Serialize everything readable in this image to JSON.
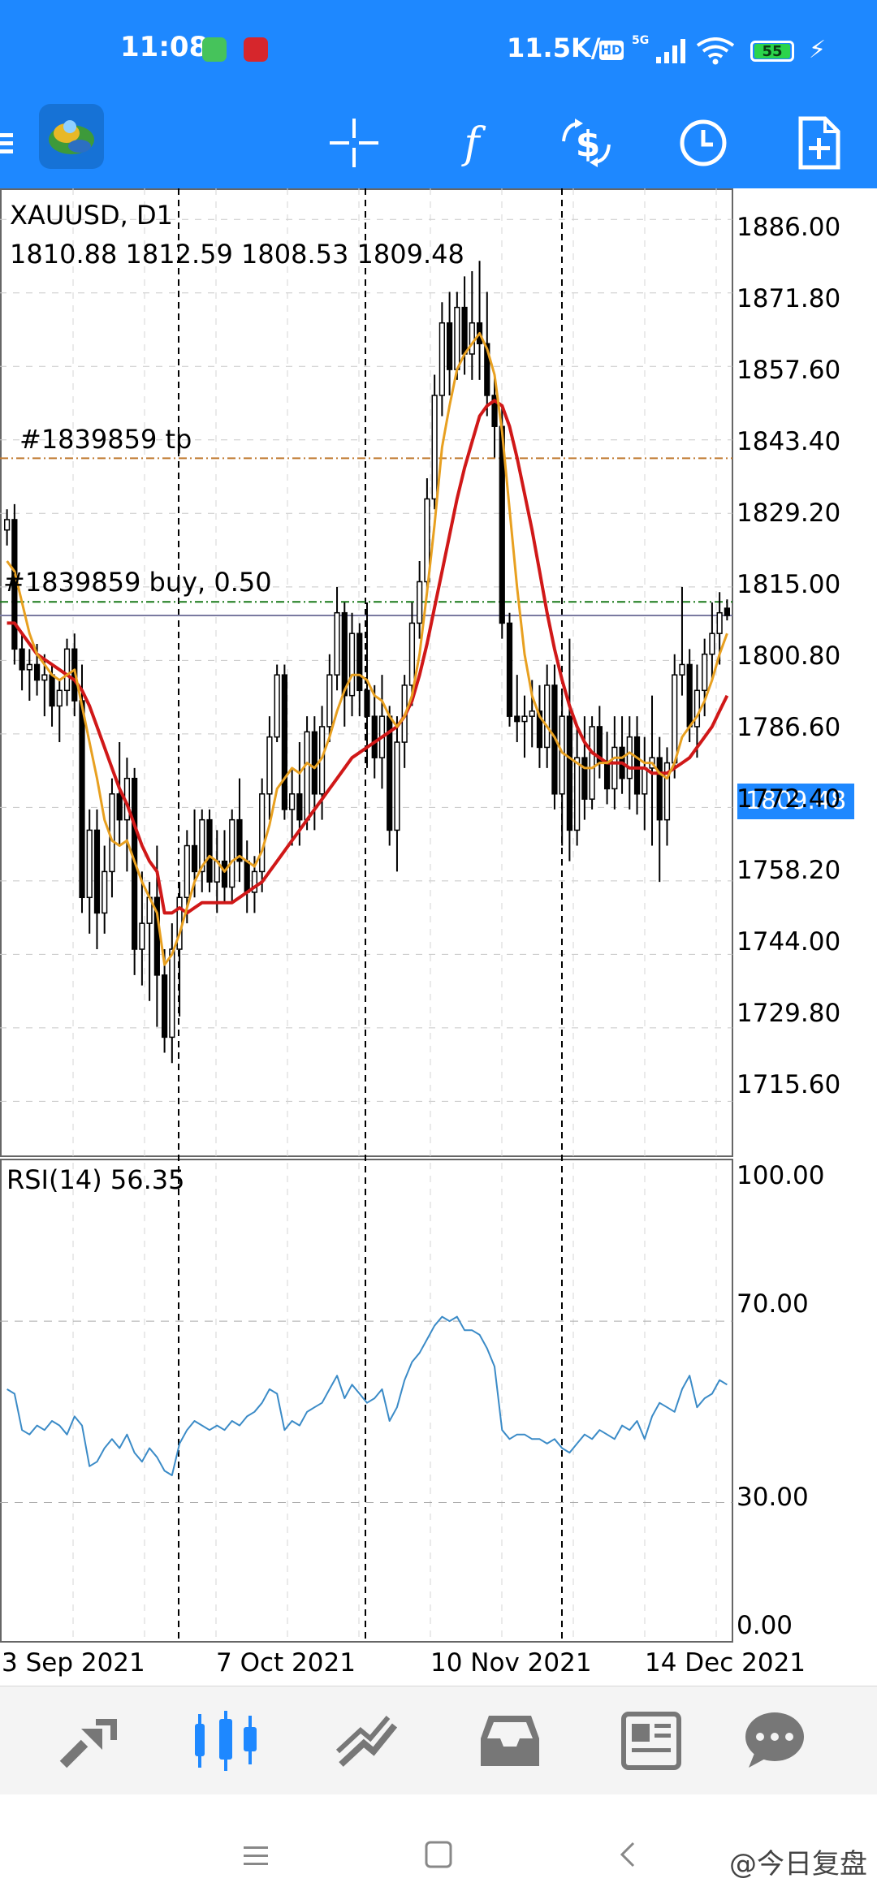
{
  "status_bar": {
    "time": "11:08",
    "network_speed": "11.5K/s",
    "hd_label": "HD",
    "net_label": "5G",
    "battery": "55"
  },
  "toolbar": {
    "icons": [
      "menu-icon",
      "metatrader-logo",
      "crosshair-icon",
      "indicators-icon",
      "trade-icon",
      "period-icon",
      "new-order-icon"
    ]
  },
  "chart": {
    "symbol_label": "XAUUSD, D1",
    "ohlc_label": "1810.88 1812.59 1808.53 1809.48",
    "tp_label": "#1839859 tp",
    "order_label": "#1839859 buy, 0.50",
    "current_price_label": "1809.48",
    "price_axis": [
      "1886.00",
      "1871.80",
      "1857.60",
      "1843.40",
      "1829.20",
      "1815.00",
      "1800.80",
      "1786.60",
      "1772.40",
      "1758.20",
      "1744.00",
      "1729.80",
      "1715.60"
    ],
    "rsi_label": "RSI(14) 56.35",
    "rsi_axis": [
      "100.00",
      "70.00",
      "30.00",
      "0.00"
    ],
    "date_axis": [
      "3 Sep 2021",
      "7 Oct 2021",
      "10 Nov 2021",
      "14 Dec 2021"
    ],
    "colors": {
      "bull": "#ffffff",
      "bear": "#000000",
      "fast_ma": "#e8a020",
      "slow_ma": "#d01818",
      "rsi_line": "#3b8bc7",
      "tp_line": "#c07a30",
      "order_line": "#1a7a1a",
      "bid_line": "#7a7aa0",
      "accent": "#1e88ff"
    }
  },
  "chart_data": {
    "type": "candlestick",
    "symbol": "XAUUSD",
    "timeframe": "D1",
    "ylim": [
      1705,
      1892
    ],
    "candles": [
      [
        1826,
        1830,
        1823,
        1828
      ],
      [
        1828,
        1831,
        1800,
        1803
      ],
      [
        1803,
        1806,
        1795,
        1799
      ],
      [
        1799,
        1803,
        1793,
        1800
      ],
      [
        1800,
        1804,
        1794,
        1797
      ],
      [
        1797,
        1802,
        1790,
        1798
      ],
      [
        1798,
        1800,
        1788,
        1792
      ],
      [
        1792,
        1797,
        1785,
        1795
      ],
      [
        1795,
        1805,
        1792,
        1803
      ],
      [
        1803,
        1806,
        1790,
        1793
      ],
      [
        1793,
        1800,
        1752,
        1755
      ],
      [
        1755,
        1772,
        1748,
        1768
      ],
      [
        1768,
        1772,
        1745,
        1752
      ],
      [
        1752,
        1765,
        1748,
        1760
      ],
      [
        1760,
        1778,
        1755,
        1775
      ],
      [
        1775,
        1785,
        1765,
        1770
      ],
      [
        1770,
        1782,
        1760,
        1778
      ],
      [
        1778,
        1780,
        1740,
        1745
      ],
      [
        1745,
        1760,
        1738,
        1750
      ],
      [
        1750,
        1758,
        1735,
        1755
      ],
      [
        1755,
        1765,
        1730,
        1740
      ],
      [
        1740,
        1745,
        1725,
        1728
      ],
      [
        1728,
        1750,
        1723,
        1745
      ],
      [
        1745,
        1758,
        1732,
        1755
      ],
      [
        1755,
        1768,
        1750,
        1765
      ],
      [
        1765,
        1772,
        1755,
        1760
      ],
      [
        1760,
        1772,
        1756,
        1770
      ],
      [
        1770,
        1772,
        1756,
        1758
      ],
      [
        1758,
        1768,
        1752,
        1762
      ],
      [
        1762,
        1768,
        1754,
        1757
      ],
      [
        1757,
        1772,
        1754,
        1770
      ],
      [
        1770,
        1778,
        1758,
        1762
      ],
      [
        1762,
        1766,
        1752,
        1756
      ],
      [
        1756,
        1763,
        1752,
        1760
      ],
      [
        1760,
        1778,
        1756,
        1775
      ],
      [
        1775,
        1790,
        1770,
        1786
      ],
      [
        1786,
        1800,
        1785,
        1798
      ],
      [
        1798,
        1800,
        1770,
        1772
      ],
      [
        1772,
        1780,
        1765,
        1775
      ],
      [
        1775,
        1785,
        1765,
        1770
      ],
      [
        1770,
        1790,
        1768,
        1787
      ],
      [
        1787,
        1790,
        1768,
        1775
      ],
      [
        1775,
        1792,
        1770,
        1788
      ],
      [
        1788,
        1802,
        1785,
        1798
      ],
      [
        1798,
        1815,
        1795,
        1810
      ],
      [
        1810,
        1812,
        1788,
        1794
      ],
      [
        1794,
        1810,
        1790,
        1806
      ],
      [
        1806,
        1808,
        1790,
        1795
      ],
      [
        1795,
        1812,
        1780,
        1790
      ],
      [
        1790,
        1796,
        1778,
        1782
      ],
      [
        1782,
        1798,
        1776,
        1790
      ],
      [
        1790,
        1792,
        1765,
        1768
      ],
      [
        1768,
        1790,
        1760,
        1785
      ],
      [
        1785,
        1798,
        1780,
        1796
      ],
      [
        1796,
        1812,
        1792,
        1808
      ],
      [
        1808,
        1820,
        1805,
        1816
      ],
      [
        1816,
        1836,
        1814,
        1832
      ],
      [
        1832,
        1856,
        1830,
        1852
      ],
      [
        1852,
        1870,
        1848,
        1866
      ],
      [
        1866,
        1872,
        1852,
        1857
      ],
      [
        1857,
        1872,
        1855,
        1869
      ],
      [
        1869,
        1875,
        1856,
        1860
      ],
      [
        1860,
        1876,
        1855,
        1866
      ],
      [
        1866,
        1878,
        1855,
        1862
      ],
      [
        1862,
        1872,
        1848,
        1852
      ],
      [
        1852,
        1856,
        1840,
        1846
      ],
      [
        1846,
        1850,
        1805,
        1808
      ],
      [
        1808,
        1810,
        1788,
        1790
      ],
      [
        1790,
        1798,
        1785,
        1789
      ],
      [
        1789,
        1794,
        1782,
        1790
      ],
      [
        1790,
        1797,
        1784,
        1791
      ],
      [
        1791,
        1796,
        1780,
        1784
      ],
      [
        1784,
        1800,
        1780,
        1796
      ],
      [
        1796,
        1800,
        1772,
        1775
      ],
      [
        1775,
        1795,
        1765,
        1790
      ],
      [
        1790,
        1805,
        1762,
        1768
      ],
      [
        1768,
        1788,
        1765,
        1782
      ],
      [
        1782,
        1790,
        1770,
        1774
      ],
      [
        1774,
        1790,
        1772,
        1788
      ],
      [
        1788,
        1792,
        1778,
        1781
      ],
      [
        1781,
        1787,
        1773,
        1776
      ],
      [
        1776,
        1790,
        1772,
        1784
      ],
      [
        1784,
        1790,
        1775,
        1778
      ],
      [
        1778,
        1790,
        1772,
        1786
      ],
      [
        1786,
        1790,
        1771,
        1775
      ],
      [
        1775,
        1786,
        1768,
        1780
      ],
      [
        1780,
        1794,
        1765,
        1782
      ],
      [
        1782,
        1786,
        1758,
        1770
      ],
      [
        1770,
        1784,
        1765,
        1781
      ],
      [
        1781,
        1802,
        1778,
        1798
      ],
      [
        1798,
        1815,
        1794,
        1800
      ],
      [
        1800,
        1803,
        1785,
        1788
      ],
      [
        1788,
        1800,
        1782,
        1795
      ],
      [
        1795,
        1805,
        1790,
        1802
      ],
      [
        1802,
        1812,
        1797,
        1806
      ],
      [
        1806,
        1814,
        1800,
        1810
      ],
      [
        1810.88,
        1812.59,
        1808.53,
        1809.48
      ]
    ],
    "fast_ma": [
      1820,
      1818,
      1812,
      1806,
      1802,
      1800,
      1798,
      1797,
      1798,
      1799,
      1792,
      1785,
      1778,
      1770,
      1766,
      1765,
      1766,
      1762,
      1758,
      1755,
      1752,
      1742,
      1744,
      1748,
      1753,
      1758,
      1761,
      1763,
      1762,
      1760,
      1762,
      1763,
      1762,
      1761,
      1764,
      1769,
      1776,
      1778,
      1780,
      1779,
      1781,
      1780,
      1782,
      1786,
      1791,
      1795,
      1798,
      1798,
      1797,
      1794,
      1793,
      1790,
      1788,
      1790,
      1794,
      1802,
      1814,
      1827,
      1842,
      1850,
      1857,
      1860,
      1862,
      1864,
      1861,
      1856,
      1845,
      1830,
      1815,
      1802,
      1794,
      1790,
      1788,
      1786,
      1783,
      1782,
      1781,
      1780,
      1780,
      1781,
      1781,
      1782,
      1782,
      1783,
      1782,
      1781,
      1781,
      1779,
      1778,
      1781,
      1786,
      1788,
      1790,
      1793,
      1797,
      1802,
      1806
    ],
    "slow_ma": [
      1808,
      1808,
      1806,
      1804,
      1802,
      1801,
      1800,
      1799,
      1798,
      1797,
      1795,
      1792,
      1788,
      1784,
      1780,
      1776,
      1773,
      1769,
      1765,
      1762,
      1760,
      1752,
      1752,
      1753,
      1752,
      1753,
      1754,
      1754,
      1754,
      1754,
      1754,
      1755,
      1756,
      1757,
      1758,
      1760,
      1762,
      1764,
      1766,
      1768,
      1770,
      1772,
      1774,
      1776,
      1778,
      1780,
      1782,
      1783,
      1784,
      1785,
      1786,
      1787,
      1788,
      1790,
      1793,
      1798,
      1804,
      1811,
      1818,
      1825,
      1832,
      1838,
      1843,
      1848,
      1850,
      1851,
      1850,
      1846,
      1840,
      1833,
      1826,
      1818,
      1810,
      1803,
      1797,
      1792,
      1788,
      1785,
      1783,
      1782,
      1781,
      1781,
      1781,
      1780,
      1780,
      1780,
      1779,
      1779,
      1779,
      1780,
      1781,
      1782,
      1784,
      1786,
      1788,
      1791,
      1794
    ],
    "rsi": [
      55,
      54,
      46,
      45,
      47,
      46,
      48,
      47,
      45,
      49,
      47,
      38,
      39,
      42,
      44,
      42,
      45,
      41,
      39,
      42,
      40,
      37,
      36,
      43,
      46,
      48,
      47,
      46,
      47,
      46,
      48,
      47,
      49,
      50,
      52,
      55,
      54,
      46,
      48,
      47,
      50,
      51,
      52,
      55,
      58,
      53,
      56,
      54,
      52,
      53,
      55,
      48,
      51,
      57,
      61,
      63,
      66,
      69,
      71,
      70,
      71,
      68,
      68,
      67,
      64,
      60,
      46,
      44,
      45,
      45,
      44,
      44,
      43,
      44,
      42,
      41,
      43,
      45,
      44,
      46,
      45,
      44,
      47,
      46,
      48,
      44,
      49,
      52,
      51,
      50,
      55,
      58,
      51,
      53,
      54,
      57,
      56
    ],
    "title": "XAUUSD, D1"
  },
  "bottom_nav": {
    "items": [
      "quotes-icon",
      "chart-icon",
      "trade-icon",
      "history-icon",
      "news-icon",
      "messages-icon"
    ],
    "active": "chart-icon"
  },
  "system_nav": {
    "watermark": "@今日复盘"
  }
}
